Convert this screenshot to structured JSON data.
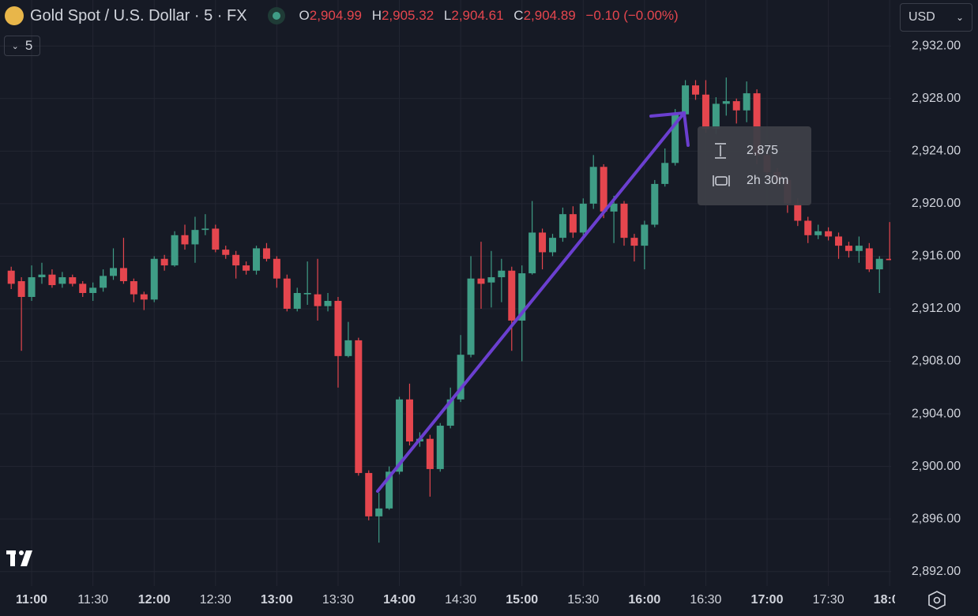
{
  "header": {
    "title": "Gold Spot / U.S. Dollar · 5 · FX",
    "o_key": "O",
    "open": "2,904.99",
    "h_key": "H",
    "high": "2,905.32",
    "l_key": "L",
    "low": "2,904.61",
    "c_key": "C",
    "close": "2,904.89",
    "change": "−0.10 (−0.00%)",
    "interval": "5",
    "currency": "USD"
  },
  "measure": {
    "price": "2,875",
    "time": "2h 30m"
  },
  "chart_data": {
    "type": "candlestick",
    "categories": [
      null,
      null,
      "11:00",
      null,
      null,
      null,
      null,
      null,
      "11:30",
      null,
      null,
      null,
      null,
      null,
      "12:00",
      null,
      null,
      null,
      null,
      null,
      "12:30",
      null,
      null,
      null,
      null,
      null,
      "13:00",
      null,
      null,
      null,
      null,
      null,
      "13:30",
      null,
      null,
      null,
      null,
      null,
      "14:00",
      null,
      null,
      null,
      null,
      null,
      "14:30",
      null,
      null,
      null,
      null,
      null,
      "15:00",
      null,
      null,
      null,
      null,
      null,
      "15:30",
      null,
      null,
      null,
      null,
      null,
      "16:00",
      null,
      null,
      null,
      null,
      null,
      "16:30",
      null,
      null,
      null,
      null,
      null,
      "17:00",
      null,
      null,
      null,
      null,
      null,
      "17:30",
      null,
      null,
      null,
      null,
      null,
      "18:00"
    ],
    "open": [
      2914.9,
      2914.1,
      2912.9,
      2914.4,
      2914.6,
      2913.9,
      2914.4,
      2913.9,
      2913.2,
      2913.6,
      2914.5,
      2915.1,
      2914.1,
      2913.1,
      2912.7,
      2915.8,
      2915.3,
      2917.6,
      2916.9,
      2918.0,
      2918.1,
      2916.5,
      2916.1,
      2915.3,
      2914.9,
      2916.6,
      2915.8,
      2914.3,
      2912.0,
      2913.1,
      2913.1,
      2912.2,
      2912.6,
      2908.4,
      2909.6,
      2899.5,
      2896.2,
      2896.8,
      2899.6,
      2905.1,
      2901.9,
      2902.1,
      2899.8,
      2903.1,
      2905.1,
      2908.5,
      2914.3,
      2914.0,
      2914.4,
      2914.9,
      2911.1,
      2914.7,
      2917.8,
      2916.3,
      2917.4,
      2919.2,
      2917.8,
      2920.0,
      2922.8,
      2919.4,
      2920.0,
      2917.4,
      2916.8,
      2918.4,
      2921.5,
      2923.1,
      2926.8,
      2929.0,
      2928.3,
      2925.7,
      2927.6,
      2927.8,
      2927.1,
      2928.4,
      2923.7,
      2922.4,
      2921.8,
      2920.0,
      2918.7,
      2917.6,
      2917.9,
      2917.5,
      2916.8,
      2916.4,
      2916.6,
      2915.0,
      2915.8
    ],
    "high": [
      2915.2,
      2914.4,
      2915.3,
      2915.5,
      2915.0,
      2914.8,
      2914.6,
      2914.1,
      2914.0,
      2915.0,
      2916.6,
      2917.4,
      2914.3,
      2913.3,
      2916.0,
      2916.1,
      2917.9,
      2918.4,
      2919.0,
      2919.2,
      2918.4,
      2916.8,
      2916.4,
      2915.6,
      2916.8,
      2917.0,
      2916.0,
      2914.6,
      2913.6,
      2915.6,
      2915.8,
      2913.2,
      2912.9,
      2911.0,
      2909.8,
      2899.7,
      2898.0,
      2900.0,
      2905.3,
      2906.3,
      2902.6,
      2902.4,
      2903.3,
      2906.0,
      2910.0,
      2916.0,
      2917.1,
      2916.4,
      2915.8,
      2915.2,
      2915.3,
      2920.2,
      2918.1,
      2917.7,
      2919.7,
      2919.8,
      2920.4,
      2923.7,
      2923.0,
      2920.6,
      2920.2,
      2917.7,
      2918.7,
      2921.8,
      2924.2,
      2927.2,
      2929.4,
      2929.4,
      2929.4,
      2928.1,
      2929.6,
      2928.0,
      2929.3,
      2928.7,
      2924.0,
      2922.7,
      2922.1,
      2920.4,
      2919.0,
      2918.4,
      2918.2,
      2917.8,
      2917.1,
      2917.5,
      2917.0,
      2916.0,
      2918.6
    ],
    "low": [
      2913.5,
      2908.8,
      2912.6,
      2913.9,
      2913.6,
      2913.6,
      2913.7,
      2912.9,
      2912.6,
      2913.3,
      2914.2,
      2913.9,
      2912.5,
      2911.9,
      2912.5,
      2914.9,
      2915.2,
      2916.5,
      2915.5,
      2917.6,
      2916.3,
      2915.8,
      2914.3,
      2914.6,
      2914.6,
      2915.6,
      2913.6,
      2911.8,
      2911.8,
      2912.3,
      2911.1,
      2911.8,
      2906.0,
      2908.3,
      2899.3,
      2895.9,
      2894.2,
      2896.7,
      2899.4,
      2901.6,
      2901.5,
      2897.7,
      2899.6,
      2902.9,
      2904.9,
      2908.3,
      2912.0,
      2912.1,
      2912.5,
      2908.8,
      2908.0,
      2914.6,
      2915.0,
      2916.0,
      2917.1,
      2917.4,
      2917.3,
      2919.6,
      2918.9,
      2917.0,
      2916.8,
      2915.6,
      2915.0,
      2918.2,
      2921.3,
      2922.9,
      2926.5,
      2927.9,
      2925.4,
      2925.3,
      2926.7,
      2926.1,
      2926.2,
      2923.0,
      2922.0,
      2921.3,
      2919.3,
      2918.3,
      2917.0,
      2917.3,
      2917.2,
      2915.8,
      2915.9,
      2915.5,
      2914.8,
      2913.2,
      2915.7
    ],
    "close": [
      2913.9,
      2912.9,
      2914.4,
      2914.6,
      2913.8,
      2914.4,
      2913.9,
      2913.2,
      2913.6,
      2914.5,
      2915.1,
      2914.1,
      2913.1,
      2912.7,
      2915.8,
      2915.3,
      2917.6,
      2916.9,
      2918.0,
      2918.1,
      2916.5,
      2916.1,
      2915.3,
      2914.9,
      2916.6,
      2915.8,
      2914.3,
      2912.0,
      2913.2,
      2913.2,
      2912.2,
      2912.6,
      2908.4,
      2909.6,
      2899.5,
      2896.2,
      2896.8,
      2899.6,
      2905.1,
      2901.9,
      2902.1,
      2899.8,
      2903.1,
      2905.1,
      2908.5,
      2914.3,
      2913.9,
      2914.4,
      2914.9,
      2911.1,
      2914.7,
      2917.8,
      2916.3,
      2917.4,
      2919.2,
      2917.8,
      2920.0,
      2922.8,
      2919.4,
      2920.0,
      2917.4,
      2916.8,
      2918.4,
      2921.5,
      2923.1,
      2926.8,
      2929.0,
      2928.3,
      2925.7,
      2927.6,
      2927.8,
      2927.1,
      2928.4,
      2923.7,
      2922.4,
      2921.8,
      2920.0,
      2918.7,
      2917.6,
      2917.9,
      2917.5,
      2916.8,
      2916.4,
      2916.8,
      2915.0,
      2915.8,
      2915.7
    ],
    "up_color": "#3f9d86",
    "down_color": "#e5464e",
    "ylim": [
      2890.9,
      2935.5
    ],
    "yticks": [
      {
        "value": 2892,
        "label": "2,892.00"
      },
      {
        "value": 2896,
        "label": "2,896.00"
      },
      {
        "value": 2900,
        "label": "2,900.00"
      },
      {
        "value": 2904,
        "label": "2,904.00"
      },
      {
        "value": 2908,
        "label": "2,908.00"
      },
      {
        "value": 2912,
        "label": "2,912.00"
      },
      {
        "value": 2916,
        "label": "2,916.00"
      },
      {
        "value": 2920,
        "label": "2,920.00"
      },
      {
        "value": 2924,
        "label": "2,924.00"
      },
      {
        "value": 2928,
        "label": "2,928.00"
      },
      {
        "value": 2932,
        "label": "2,932.00"
      }
    ],
    "grid": true
  }
}
